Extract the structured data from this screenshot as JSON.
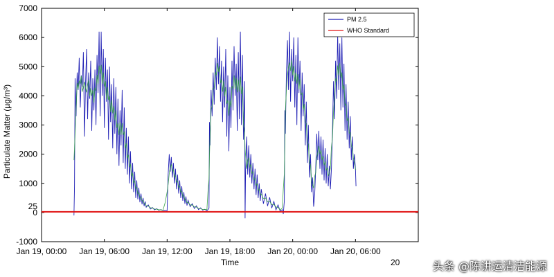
{
  "chart_data": {
    "type": "line",
    "xlabel": "Time",
    "ylabel": "Particulate Matter (µg/m³)",
    "ylim": [
      -1000,
      7000
    ],
    "xlim_hours": [
      0,
      36
    ],
    "yticks": [
      {
        "value": 7000,
        "label": "7000"
      },
      {
        "value": 6000,
        "label": "6000"
      },
      {
        "value": 5000,
        "label": "5000"
      },
      {
        "value": 4000,
        "label": "4000"
      },
      {
        "value": 3000,
        "label": "3000"
      },
      {
        "value": 2000,
        "label": "2000"
      },
      {
        "value": 1000,
        "label": "1000"
      },
      {
        "value": 25,
        "label": "25"
      },
      {
        "value": 0,
        "label": "0"
      },
      {
        "value": -1000,
        "label": "-1000"
      }
    ],
    "xticks": [
      {
        "hour": 0,
        "label": "Jan 19, 00:00"
      },
      {
        "hour": 6,
        "label": "Jan 19, 06:00"
      },
      {
        "hour": 12,
        "label": "Jan 19, 12:00"
      },
      {
        "hour": 18,
        "label": "Jan 19, 18:00"
      },
      {
        "hour": 24,
        "label": "Jan 20, 00:00"
      },
      {
        "hour": 30,
        "label": "Jan 20, 06:00"
      }
    ],
    "legend": {
      "position": "top-right",
      "entries": [
        "PM 2.5",
        "WHO Standard"
      ]
    },
    "who_standard": 25,
    "series": [
      {
        "name": "PM 2.5",
        "color": "#1f1fb4",
        "points": [
          [
            3.1,
            -100
          ],
          [
            3.15,
            900
          ],
          [
            3.2,
            4600
          ],
          [
            3.3,
            3300
          ],
          [
            3.4,
            4800
          ],
          [
            3.5,
            4200
          ],
          [
            3.6,
            5300
          ],
          [
            3.7,
            3600
          ],
          [
            3.8,
            4700
          ],
          [
            3.9,
            4300
          ],
          [
            4.0,
            5500
          ],
          [
            4.1,
            2600
          ],
          [
            4.2,
            4400
          ],
          [
            4.3,
            5600
          ],
          [
            4.4,
            3200
          ],
          [
            4.5,
            4800
          ],
          [
            4.6,
            3900
          ],
          [
            4.7,
            5200
          ],
          [
            4.8,
            2800
          ],
          [
            4.9,
            4600
          ],
          [
            5.0,
            3500
          ],
          [
            5.1,
            4900
          ],
          [
            5.2,
            3000
          ],
          [
            5.3,
            5400
          ],
          [
            5.4,
            4100
          ],
          [
            5.5,
            6200
          ],
          [
            5.6,
            3300
          ],
          [
            5.7,
            6200
          ],
          [
            5.8,
            4000
          ],
          [
            5.9,
            5600
          ],
          [
            6.0,
            2900
          ],
          [
            6.1,
            5300
          ],
          [
            6.2,
            3800
          ],
          [
            6.3,
            4900
          ],
          [
            6.4,
            2500
          ],
          [
            6.5,
            5000
          ],
          [
            6.6,
            3100
          ],
          [
            6.7,
            4400
          ],
          [
            6.8,
            2200
          ],
          [
            6.9,
            4600
          ],
          [
            7.0,
            2700
          ],
          [
            7.1,
            4300
          ],
          [
            7.2,
            2000
          ],
          [
            7.3,
            3900
          ],
          [
            7.4,
            1600
          ],
          [
            7.5,
            3500
          ],
          [
            7.6,
            2300
          ],
          [
            7.7,
            4200
          ],
          [
            7.8,
            1700
          ],
          [
            7.9,
            3600
          ],
          [
            8.0,
            1500
          ],
          [
            8.1,
            2900
          ],
          [
            8.2,
            1300
          ],
          [
            8.3,
            2600
          ],
          [
            8.4,
            1000
          ],
          [
            8.5,
            2100
          ],
          [
            8.6,
            800
          ],
          [
            8.7,
            1700
          ],
          [
            8.8,
            700
          ],
          [
            8.9,
            1400
          ],
          [
            9.0,
            500
          ],
          [
            9.1,
            1100
          ],
          [
            9.2,
            450
          ],
          [
            9.3,
            850
          ],
          [
            9.4,
            350
          ],
          [
            9.5,
            650
          ],
          [
            9.6,
            280
          ],
          [
            9.7,
            500
          ],
          [
            9.8,
            220
          ],
          [
            9.9,
            380
          ],
          [
            10.0,
            180
          ],
          [
            10.2,
            260
          ],
          [
            10.4,
            120
          ],
          [
            10.6,
            170
          ],
          [
            10.8,
            90
          ],
          [
            11.0,
            130
          ],
          [
            11.2,
            80
          ],
          [
            11.4,
            100
          ],
          [
            11.6,
            70
          ],
          [
            11.8,
            80
          ],
          [
            12.0,
            60
          ],
          [
            12.1,
            1300
          ],
          [
            12.2,
            2000
          ],
          [
            12.3,
            1400
          ],
          [
            12.4,
            1900
          ],
          [
            12.5,
            1200
          ],
          [
            12.6,
            1700
          ],
          [
            12.7,
            1000
          ],
          [
            12.8,
            1500
          ],
          [
            12.9,
            800
          ],
          [
            13.0,
            1300
          ],
          [
            13.1,
            650
          ],
          [
            13.2,
            1100
          ],
          [
            13.3,
            500
          ],
          [
            13.4,
            900
          ],
          [
            13.5,
            400
          ],
          [
            13.6,
            700
          ],
          [
            13.7,
            300
          ],
          [
            13.8,
            550
          ],
          [
            13.9,
            240
          ],
          [
            14.0,
            420
          ],
          [
            14.2,
            200
          ],
          [
            14.4,
            300
          ],
          [
            14.6,
            140
          ],
          [
            14.8,
            230
          ],
          [
            15.0,
            100
          ],
          [
            15.2,
            160
          ],
          [
            15.4,
            80
          ],
          [
            15.6,
            110
          ],
          [
            15.8,
            60
          ],
          [
            15.9,
            100
          ],
          [
            16.0,
            150
          ],
          [
            16.05,
            3100
          ],
          [
            16.1,
            2300
          ],
          [
            16.2,
            4200
          ],
          [
            16.3,
            3300
          ],
          [
            16.4,
            4800
          ],
          [
            16.5,
            3700
          ],
          [
            16.6,
            5300
          ],
          [
            16.7,
            4200
          ],
          [
            16.8,
            6000
          ],
          [
            16.9,
            4400
          ],
          [
            17.0,
            5700
          ],
          [
            17.1,
            3800
          ],
          [
            17.2,
            5200
          ],
          [
            17.3,
            3100
          ],
          [
            17.4,
            5000
          ],
          [
            17.5,
            3600
          ],
          [
            17.6,
            5600
          ],
          [
            17.7,
            2600
          ],
          [
            17.8,
            4700
          ],
          [
            17.9,
            2100
          ],
          [
            18.0,
            4300
          ],
          [
            18.1,
            2900
          ],
          [
            18.2,
            5200
          ],
          [
            18.3,
            3500
          ],
          [
            18.4,
            5700
          ],
          [
            18.5,
            4000
          ],
          [
            18.6,
            5100
          ],
          [
            18.7,
            2800
          ],
          [
            18.8,
            5500
          ],
          [
            18.9,
            3200
          ],
          [
            19.0,
            6200
          ],
          [
            19.1,
            3000
          ],
          [
            19.2,
            5400
          ],
          [
            19.3,
            2500
          ],
          [
            19.4,
            4500
          ],
          [
            19.45,
            -200
          ],
          [
            19.5,
            1500
          ],
          [
            19.6,
            2600
          ],
          [
            19.7,
            1300
          ],
          [
            19.8,
            2300
          ],
          [
            19.9,
            1200
          ],
          [
            20.0,
            2000
          ],
          [
            20.1,
            1000
          ],
          [
            20.2,
            1700
          ],
          [
            20.3,
            800
          ],
          [
            20.4,
            1500
          ],
          [
            20.5,
            600
          ],
          [
            20.6,
            1300
          ],
          [
            20.7,
            500
          ],
          [
            20.8,
            1000
          ],
          [
            20.9,
            400
          ],
          [
            21.0,
            800
          ],
          [
            21.2,
            300
          ],
          [
            21.4,
            650
          ],
          [
            21.6,
            220
          ],
          [
            21.8,
            520
          ],
          [
            22.0,
            150
          ],
          [
            22.2,
            380
          ],
          [
            22.4,
            90
          ],
          [
            22.6,
            260
          ],
          [
            22.8,
            50
          ],
          [
            23.0,
            100
          ],
          [
            23.1,
            -50
          ],
          [
            23.2,
            400
          ],
          [
            23.25,
            3500
          ],
          [
            23.3,
            2700
          ],
          [
            23.4,
            4800
          ],
          [
            23.5,
            5900
          ],
          [
            23.6,
            4200
          ],
          [
            23.7,
            6200
          ],
          [
            23.8,
            3800
          ],
          [
            23.9,
            5600
          ],
          [
            24.0,
            4500
          ],
          [
            24.1,
            6000
          ],
          [
            24.2,
            3600
          ],
          [
            24.3,
            5400
          ],
          [
            24.4,
            3000
          ],
          [
            24.5,
            6000
          ],
          [
            24.6,
            4100
          ],
          [
            24.7,
            5200
          ],
          [
            24.8,
            2800
          ],
          [
            24.9,
            4800
          ],
          [
            25.0,
            3300
          ],
          [
            25.1,
            4400
          ],
          [
            25.2,
            2300
          ],
          [
            25.3,
            3800
          ],
          [
            25.4,
            1700
          ],
          [
            25.5,
            3000
          ],
          [
            25.6,
            1200
          ],
          [
            25.7,
            2000
          ],
          [
            25.8,
            700
          ],
          [
            25.9,
            1200
          ],
          [
            26.0,
            200
          ],
          [
            26.1,
            600
          ],
          [
            26.2,
            1500
          ],
          [
            26.3,
            2700
          ],
          [
            26.4,
            1800
          ],
          [
            26.5,
            2800
          ],
          [
            26.6,
            1500
          ],
          [
            26.7,
            2600
          ],
          [
            26.8,
            1300
          ],
          [
            26.9,
            2500
          ],
          [
            27.0,
            1100
          ],
          [
            27.1,
            2200
          ],
          [
            27.2,
            1000
          ],
          [
            27.3,
            2000
          ],
          [
            27.4,
            900
          ],
          [
            27.5,
            1600
          ],
          [
            27.6,
            800
          ],
          [
            27.7,
            1500
          ],
          [
            27.8,
            2800
          ],
          [
            27.9,
            4500
          ],
          [
            28.0,
            3200
          ],
          [
            28.1,
            5200
          ],
          [
            28.2,
            3900
          ],
          [
            28.3,
            6100
          ],
          [
            28.4,
            4200
          ],
          [
            28.5,
            5800
          ],
          [
            28.6,
            3500
          ],
          [
            28.7,
            6000
          ],
          [
            28.8,
            3600
          ],
          [
            28.9,
            5100
          ],
          [
            29.0,
            2800
          ],
          [
            29.1,
            4400
          ],
          [
            29.2,
            2500
          ],
          [
            29.3,
            3800
          ],
          [
            29.4,
            2200
          ],
          [
            29.5,
            3300
          ],
          [
            29.6,
            1800
          ],
          [
            29.7,
            2600
          ],
          [
            29.8,
            1500
          ],
          [
            29.9,
            2000
          ],
          [
            30.0,
            1500
          ],
          [
            30.05,
            900
          ]
        ]
      },
      {
        "name": "WHO Standard",
        "color": "#e01010",
        "constant": 25
      }
    ]
  },
  "watermark": "头条 @陈讲运清洁能源",
  "partial_label": "20"
}
